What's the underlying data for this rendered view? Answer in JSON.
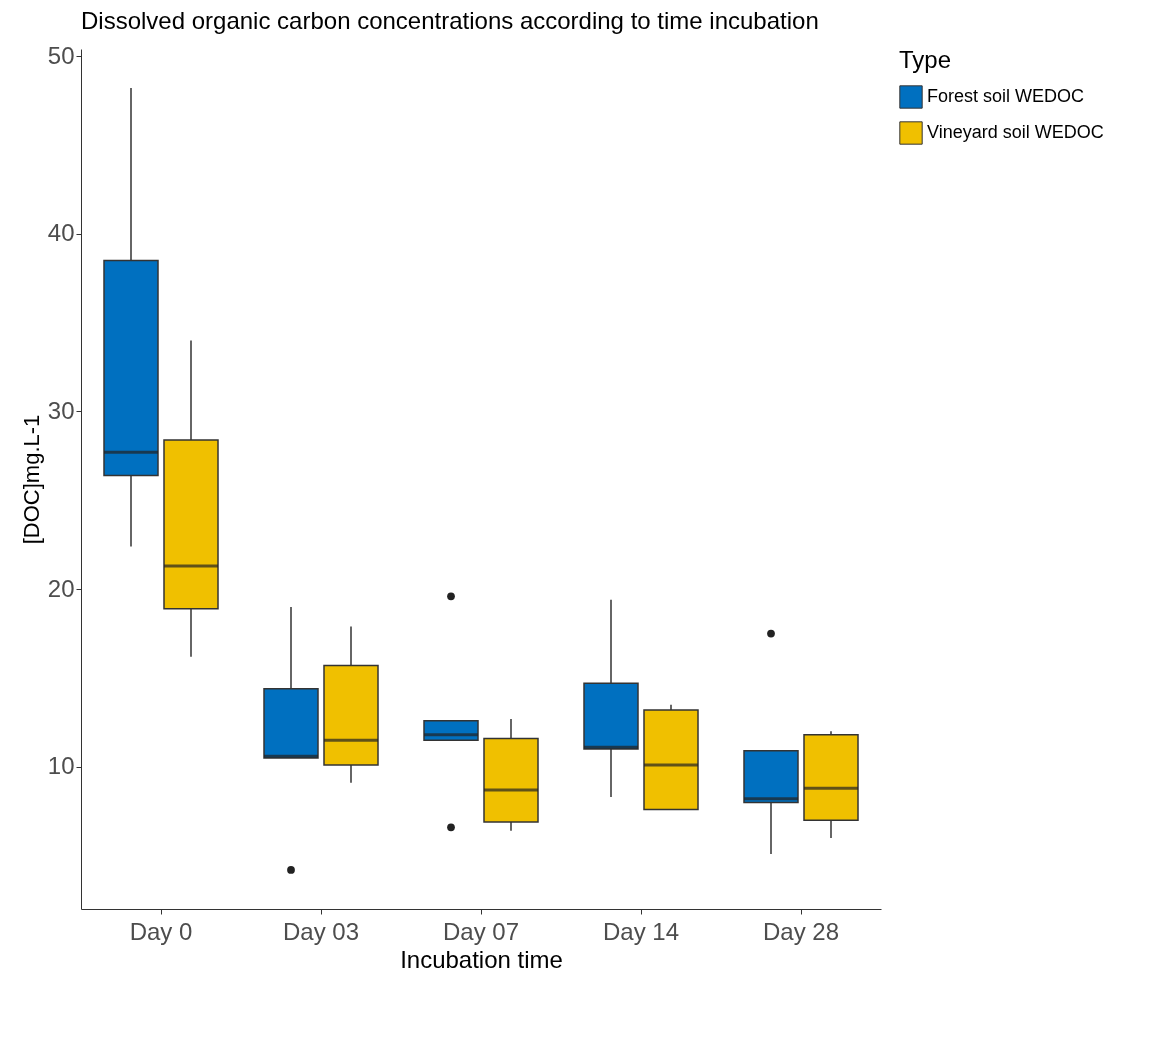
{
  "chart_data": {
    "type": "box",
    "title": "Dissolved organic carbon concentrations according to time incubation",
    "xlabel": "Incubation time",
    "ylabel": "[DOC]mg.L-1",
    "legend_title": "Type",
    "legend": "right",
    "grid": false,
    "categories": [
      "Day 0",
      "Day 03",
      "Day 07",
      "Day 14",
      "Day 28"
    ],
    "ylim": [
      2.0,
      50.4
    ],
    "yticks": [
      10,
      20,
      30,
      40,
      50
    ],
    "series": [
      {
        "name": "Forest soil WEDOC",
        "color": "#0070c0",
        "boxes": [
          {
            "low": 22.4,
            "q1": 26.4,
            "median": 27.7,
            "q3": 38.5,
            "high": 48.2
          },
          {
            "low": 10.5,
            "q1": 10.5,
            "median": 10.6,
            "q3": 14.4,
            "high": 19.0,
            "outliers": [
              4.2
            ]
          },
          {
            "low": 11.5,
            "q1": 11.5,
            "median": 11.8,
            "q3": 12.6,
            "high": 12.6,
            "outliers": [
              19.6,
              6.6
            ]
          },
          {
            "low": 8.3,
            "q1": 11.0,
            "median": 11.1,
            "q3": 14.7,
            "high": 19.4
          },
          {
            "low": 5.1,
            "q1": 8.0,
            "median": 8.2,
            "q3": 10.9,
            "high": 10.9,
            "outliers": [
              17.5
            ]
          }
        ]
      },
      {
        "name": "Vineyard soil WEDOC",
        "color": "#f0c000",
        "boxes": [
          {
            "low": 16.2,
            "q1": 18.9,
            "median": 21.3,
            "q3": 28.4,
            "high": 34.0
          },
          {
            "low": 9.1,
            "q1": 10.1,
            "median": 11.5,
            "q3": 15.7,
            "high": 17.9
          },
          {
            "low": 6.4,
            "q1": 6.9,
            "median": 8.7,
            "q3": 11.6,
            "high": 12.7
          },
          {
            "low": 7.6,
            "q1": 7.6,
            "median": 10.1,
            "q3": 13.2,
            "high": 13.5
          },
          {
            "low": 6.0,
            "q1": 7.0,
            "median": 8.8,
            "q3": 11.8,
            "high": 12.0
          }
        ]
      }
    ]
  }
}
